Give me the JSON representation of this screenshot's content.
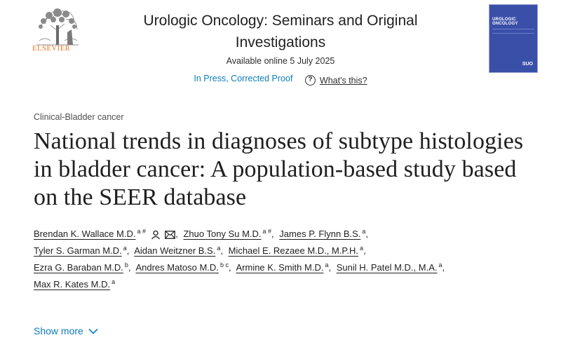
{
  "publisher": {
    "wordmark": "ELSEVIER"
  },
  "journal": {
    "title": "Urologic Oncology: Seminars and Original Investigations",
    "available_online": "Available online 5 July 2025",
    "status": "In Press, Corrected Proof",
    "help_label": "What's this?",
    "cover": {
      "title": "UROLOGIC ONCOLOGY",
      "badge": "SUO"
    }
  },
  "article": {
    "category": "Clinical-Bladder cancer",
    "title": "National trends in diagnoses of subtype histologies in bladder cancer: A population-based study based on the SEER database"
  },
  "authors": [
    {
      "name": "Brendan K. Wallace M.D.",
      "sup": "a #"
    },
    {
      "name": "Zhuo Tony Su M.D.",
      "sup": "a #"
    },
    {
      "name": "James P. Flynn B.S.",
      "sup": "a"
    },
    {
      "name": "Tyler S. Garman M.D.",
      "sup": "a"
    },
    {
      "name": "Aidan Weitzner B.S.",
      "sup": "a"
    },
    {
      "name": "Michael E. Rezaee M.D., M.P.H.",
      "sup": "a"
    },
    {
      "name": "Ezra G. Baraban M.D.",
      "sup": "b"
    },
    {
      "name": "Andres Matoso M.D.",
      "sup": "b c"
    },
    {
      "name": "Armine K. Smith M.D.",
      "sup": "a"
    },
    {
      "name": "Sunil H. Patel M.D., M.A.",
      "sup": "a"
    },
    {
      "name": "Max R. Kates M.D.",
      "sup": "a"
    }
  ],
  "show_more_label": "Show more",
  "colors": {
    "link": "#0c7dbb",
    "elsevier_orange": "#e9711c",
    "cover_blue": "#3a4fa8"
  }
}
